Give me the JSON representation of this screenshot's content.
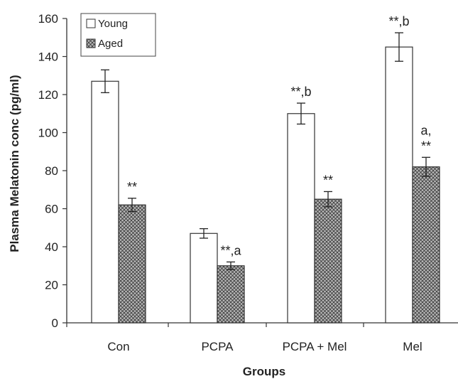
{
  "chart_data": {
    "type": "bar",
    "title": "",
    "xlabel": "Groups",
    "ylabel": "Plasma Melatonin conc (pg/ml)",
    "ylim": [
      0,
      160
    ],
    "yticks": [
      0,
      20,
      40,
      60,
      80,
      100,
      120,
      140,
      160
    ],
    "grid": false,
    "legend_position": "top-left",
    "categories": [
      "Con",
      "PCPA",
      "PCPA  + Mel",
      "Mel"
    ],
    "series": [
      {
        "name": "Young",
        "pattern": "open",
        "values": [
          127,
          47,
          110,
          145
        ],
        "errors": [
          6,
          2.5,
          5.5,
          7.5
        ],
        "annotations": [
          "",
          "",
          "**,b",
          "**,b"
        ]
      },
      {
        "name": "Aged",
        "pattern": "crosshatch",
        "values": [
          62,
          30,
          65,
          82
        ],
        "errors": [
          3.5,
          2,
          4,
          5
        ],
        "annotations": [
          "**",
          "**,a",
          "**",
          "a,\n**"
        ]
      }
    ]
  }
}
